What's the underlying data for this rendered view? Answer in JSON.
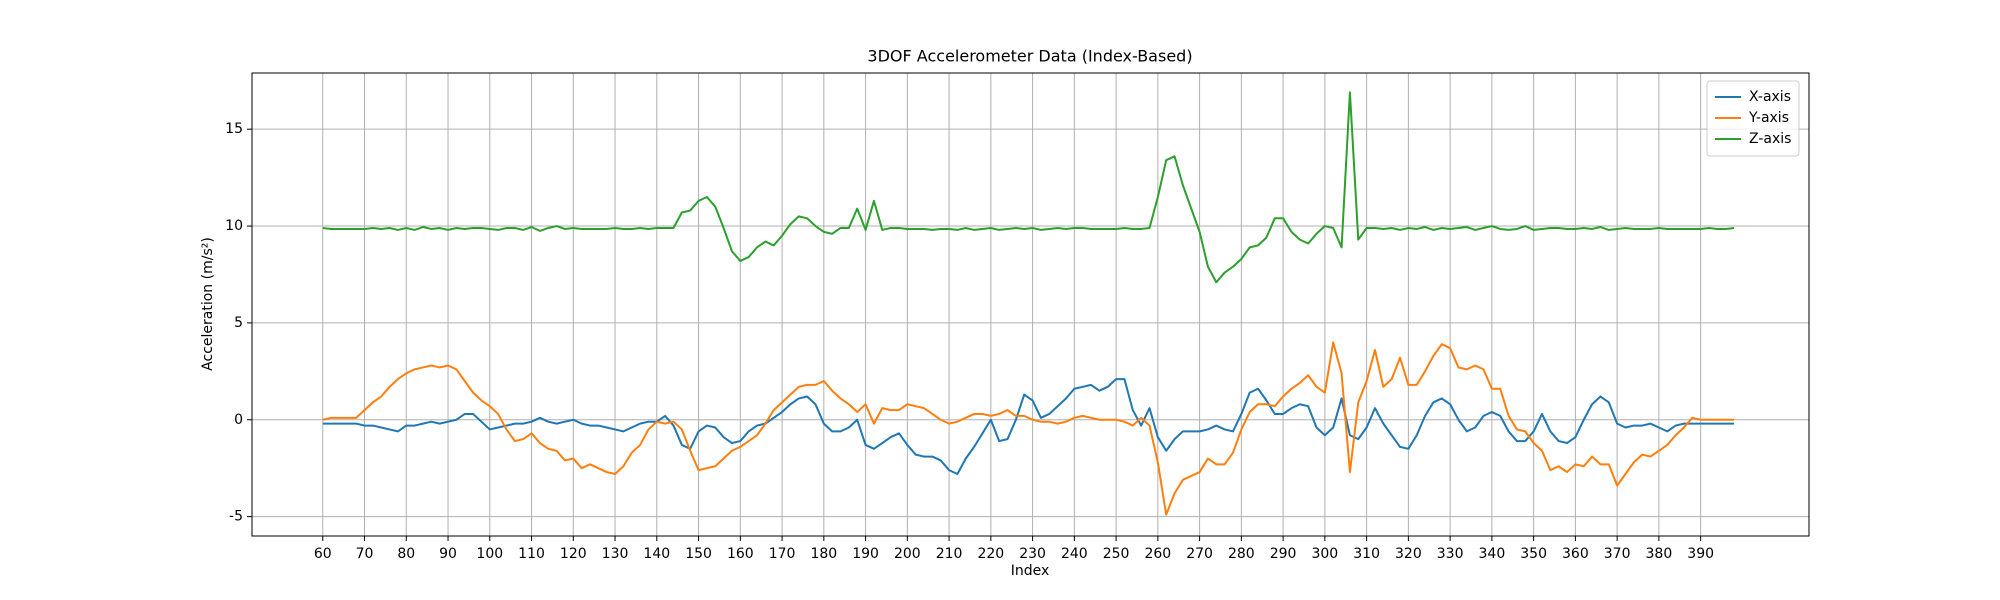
{
  "chart_data": {
    "type": "line",
    "title": "3DOF Accelerometer Data (Index-Based)",
    "x_label": "Index",
    "y_label": "Acceleration (m/s²)",
    "x": [
      60,
      62,
      64,
      66,
      68,
      70,
      72,
      74,
      76,
      78,
      80,
      82,
      84,
      86,
      88,
      90,
      92,
      94,
      96,
      98,
      100,
      102,
      104,
      106,
      108,
      110,
      112,
      114,
      116,
      118,
      120,
      122,
      124,
      126,
      128,
      130,
      132,
      134,
      136,
      138,
      140,
      142,
      144,
      146,
      148,
      150,
      152,
      154,
      156,
      158,
      160,
      162,
      164,
      166,
      168,
      170,
      172,
      174,
      176,
      178,
      180,
      182,
      184,
      186,
      188,
      190,
      192,
      194,
      196,
      198,
      200,
      202,
      204,
      206,
      208,
      210,
      212,
      214,
      216,
      218,
      220,
      222,
      224,
      226,
      228,
      230,
      232,
      234,
      236,
      238,
      240,
      242,
      244,
      246,
      248,
      250,
      252,
      254,
      256,
      258,
      260,
      262,
      264,
      266,
      268,
      270,
      272,
      274,
      276,
      278,
      280,
      282,
      284,
      286,
      288,
      290,
      292,
      294,
      296,
      298,
      300,
      302,
      304,
      306,
      308,
      310,
      312,
      314,
      316,
      318,
      320,
      322,
      324,
      326,
      328,
      330,
      332,
      334,
      336,
      338,
      340,
      342,
      344,
      346,
      348,
      350,
      352,
      354,
      356,
      358,
      360,
      362,
      364,
      366,
      368,
      370,
      372,
      374,
      376,
      378,
      380,
      382,
      384,
      386,
      388,
      390,
      392,
      394,
      396,
      398
    ],
    "series": [
      {
        "name": "X-axis",
        "color": "#1f77b4",
        "values": [
          -0.2,
          -0.2,
          -0.2,
          -0.2,
          -0.2,
          -0.3,
          -0.3,
          -0.4,
          -0.5,
          -0.6,
          -0.3,
          -0.3,
          -0.2,
          -0.1,
          -0.2,
          -0.1,
          0.0,
          0.3,
          0.3,
          -0.1,
          -0.5,
          -0.4,
          -0.3,
          -0.2,
          -0.2,
          -0.1,
          0.1,
          -0.1,
          -0.2,
          -0.1,
          0.0,
          -0.2,
          -0.3,
          -0.3,
          -0.4,
          -0.5,
          -0.6,
          -0.4,
          -0.2,
          -0.1,
          -0.1,
          0.2,
          -0.3,
          -1.3,
          -1.5,
          -0.6,
          -0.3,
          -0.4,
          -0.9,
          -1.2,
          -1.1,
          -0.6,
          -0.3,
          -0.2,
          0.1,
          0.4,
          0.8,
          1.1,
          1.2,
          0.8,
          -0.2,
          -0.6,
          -0.6,
          -0.4,
          0.0,
          -1.3,
          -1.5,
          -1.2,
          -0.9,
          -0.7,
          -1.3,
          -1.8,
          -1.9,
          -1.9,
          -2.1,
          -2.6,
          -2.8,
          -2.0,
          -1.4,
          -0.7,
          0.0,
          -1.1,
          -1.0,
          0.0,
          1.3,
          1.0,
          0.1,
          0.3,
          0.7,
          1.1,
          1.6,
          1.7,
          1.8,
          1.5,
          1.7,
          2.1,
          2.1,
          0.5,
          -0.3,
          0.6,
          -0.9,
          -1.6,
          -1.0,
          -0.6,
          -0.6,
          -0.6,
          -0.5,
          -0.3,
          -0.5,
          -0.6,
          0.3,
          1.4,
          1.6,
          1.0,
          0.3,
          0.3,
          0.6,
          0.8,
          0.7,
          -0.4,
          -0.8,
          -0.4,
          1.1,
          -0.8,
          -1.0,
          -0.4,
          0.6,
          -0.2,
          -0.8,
          -1.4,
          -1.5,
          -0.8,
          0.2,
          0.9,
          1.1,
          0.8,
          0.0,
          -0.6,
          -0.4,
          0.2,
          0.4,
          0.2,
          -0.6,
          -1.1,
          -1.1,
          -0.6,
          0.3,
          -0.6,
          -1.1,
          -1.2,
          -0.9,
          0.0,
          0.8,
          1.2,
          0.9,
          -0.2,
          -0.4,
          -0.3,
          -0.3,
          -0.2,
          -0.4,
          -0.6,
          -0.3,
          -0.2,
          -0.2,
          -0.2,
          -0.2,
          -0.2,
          -0.2,
          -0.2
        ]
      },
      {
        "name": "Y-axis",
        "color": "#ff7f0e",
        "values": [
          0.0,
          0.1,
          0.1,
          0.1,
          0.1,
          0.5,
          0.9,
          1.2,
          1.7,
          2.1,
          2.4,
          2.6,
          2.7,
          2.8,
          2.7,
          2.8,
          2.6,
          2.0,
          1.4,
          1.0,
          0.7,
          0.3,
          -0.5,
          -1.1,
          -1.0,
          -0.7,
          -1.2,
          -1.5,
          -1.6,
          -2.1,
          -2.0,
          -2.5,
          -2.3,
          -2.5,
          -2.7,
          -2.8,
          -2.4,
          -1.7,
          -1.3,
          -0.5,
          -0.1,
          -0.2,
          -0.1,
          -0.5,
          -1.6,
          -2.6,
          -2.5,
          -2.4,
          -2.0,
          -1.6,
          -1.4,
          -1.1,
          -0.8,
          -0.2,
          0.5,
          0.9,
          1.3,
          1.7,
          1.8,
          1.8,
          2.0,
          1.5,
          1.1,
          0.8,
          0.4,
          0.8,
          -0.2,
          0.6,
          0.5,
          0.5,
          0.8,
          0.7,
          0.6,
          0.3,
          0.0,
          -0.2,
          -0.1,
          0.1,
          0.3,
          0.3,
          0.2,
          0.3,
          0.5,
          0.2,
          0.2,
          0.0,
          -0.1,
          -0.1,
          -0.2,
          -0.1,
          0.1,
          0.2,
          0.1,
          0.0,
          0.0,
          0.0,
          -0.1,
          -0.3,
          0.1,
          -0.3,
          -2.2,
          -4.9,
          -3.8,
          -3.1,
          -2.9,
          -2.7,
          -2.0,
          -2.3,
          -2.3,
          -1.7,
          -0.5,
          0.4,
          0.8,
          0.8,
          0.7,
          1.2,
          1.6,
          1.9,
          2.3,
          1.7,
          1.4,
          4.0,
          2.4,
          -2.7,
          0.9,
          2.0,
          3.6,
          1.7,
          2.1,
          3.2,
          1.8,
          1.8,
          2.5,
          3.3,
          3.9,
          3.7,
          2.7,
          2.6,
          2.8,
          2.6,
          1.6,
          1.6,
          0.2,
          -0.5,
          -0.6,
          -1.2,
          -1.6,
          -2.6,
          -2.4,
          -2.7,
          -2.3,
          -2.4,
          -1.9,
          -2.3,
          -2.3,
          -3.4,
          -2.8,
          -2.2,
          -1.8,
          -1.9,
          -1.6,
          -1.3,
          -0.8,
          -0.4,
          0.1,
          0.0,
          0.0,
          0.0,
          0.0,
          0.0
        ]
      },
      {
        "name": "Z-axis",
        "color": "#2ca02c",
        "values": [
          9.9,
          9.85,
          9.85,
          9.85,
          9.85,
          9.85,
          9.9,
          9.85,
          9.9,
          9.8,
          9.9,
          9.8,
          9.95,
          9.85,
          9.9,
          9.8,
          9.9,
          9.85,
          9.9,
          9.9,
          9.85,
          9.8,
          9.9,
          9.9,
          9.8,
          9.95,
          9.75,
          9.9,
          10.0,
          9.85,
          9.9,
          9.85,
          9.85,
          9.85,
          9.85,
          9.9,
          9.85,
          9.85,
          9.9,
          9.85,
          9.9,
          9.9,
          9.9,
          10.7,
          10.8,
          11.3,
          11.5,
          11.0,
          9.9,
          8.7,
          8.2,
          8.4,
          8.9,
          9.2,
          9.0,
          9.5,
          10.1,
          10.5,
          10.4,
          10.0,
          9.7,
          9.6,
          9.9,
          9.9,
          10.9,
          9.8,
          11.3,
          9.8,
          9.9,
          9.9,
          9.85,
          9.85,
          9.85,
          9.8,
          9.85,
          9.85,
          9.8,
          9.9,
          9.8,
          9.85,
          9.9,
          9.8,
          9.85,
          9.9,
          9.85,
          9.9,
          9.8,
          9.85,
          9.9,
          9.85,
          9.9,
          9.9,
          9.85,
          9.85,
          9.85,
          9.85,
          9.9,
          9.85,
          9.85,
          9.9,
          11.5,
          13.4,
          13.6,
          12.1,
          10.9,
          9.7,
          7.9,
          7.1,
          7.6,
          7.9,
          8.3,
          8.9,
          9.0,
          9.4,
          10.4,
          10.4,
          9.7,
          9.3,
          9.1,
          9.6,
          10.0,
          9.9,
          8.9,
          16.9,
          9.3,
          9.9,
          9.9,
          9.85,
          9.9,
          9.8,
          9.9,
          9.85,
          9.95,
          9.8,
          9.9,
          9.85,
          9.9,
          9.95,
          9.8,
          9.9,
          10.0,
          9.85,
          9.8,
          9.85,
          10.0,
          9.8,
          9.85,
          9.9,
          9.9,
          9.85,
          9.85,
          9.9,
          9.85,
          9.95,
          9.8,
          9.85,
          9.9,
          9.85,
          9.85,
          9.85,
          9.9,
          9.85,
          9.85,
          9.85,
          9.85,
          9.85,
          9.9,
          9.85,
          9.85,
          9.9
        ]
      }
    ],
    "xlim": [
      43.05,
      415.95
    ],
    "ylim": [
      -6.0,
      17.9
    ],
    "xticks": [
      60,
      70,
      80,
      90,
      100,
      110,
      120,
      130,
      140,
      150,
      160,
      170,
      180,
      190,
      200,
      210,
      220,
      230,
      240,
      250,
      260,
      270,
      280,
      290,
      300,
      310,
      320,
      330,
      340,
      350,
      360,
      370,
      380,
      390
    ],
    "yticks": [
      -5,
      0,
      5,
      10,
      15
    ],
    "grid": true,
    "legend": "upper right"
  }
}
